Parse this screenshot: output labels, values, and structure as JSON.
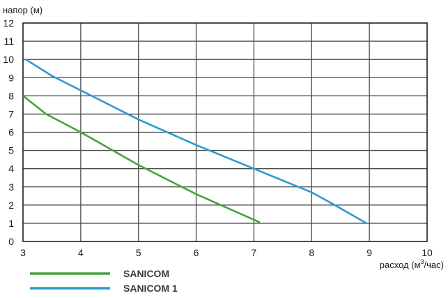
{
  "chart_data": {
    "type": "line",
    "title": "",
    "ylabel": "напор (м)",
    "xlabel_main": "расход (м",
    "xlabel_sup": "3",
    "xlabel_end": "/час)",
    "xlim": [
      3,
      10
    ],
    "ylim": [
      0,
      12
    ],
    "x_ticks": [
      "3",
      "4",
      "5",
      "6",
      "7",
      "8",
      "9",
      "10"
    ],
    "y_ticks": [
      "0",
      "1",
      "2",
      "3",
      "4",
      "5",
      "6",
      "7",
      "8",
      "9",
      "10",
      "11",
      "12"
    ],
    "grid": true,
    "legend_position": "bottom-left",
    "series": [
      {
        "name": "SANICOM",
        "color": "#46a23c",
        "points": [
          [
            3.0,
            8.0
          ],
          [
            3.4,
            7.0
          ],
          [
            4.0,
            6.0
          ],
          [
            5.0,
            4.2
          ],
          [
            6.0,
            2.6
          ],
          [
            7.1,
            1.05
          ]
        ]
      },
      {
        "name": "SANICOM 1",
        "color": "#2b9ad3",
        "points": [
          [
            3.05,
            10.0
          ],
          [
            3.5,
            9.1
          ],
          [
            4.0,
            8.3
          ],
          [
            5.0,
            6.7
          ],
          [
            6.0,
            5.3
          ],
          [
            7.0,
            4.0
          ],
          [
            8.0,
            2.7
          ],
          [
            8.4,
            2.0
          ],
          [
            8.95,
            1.0
          ]
        ]
      }
    ]
  }
}
